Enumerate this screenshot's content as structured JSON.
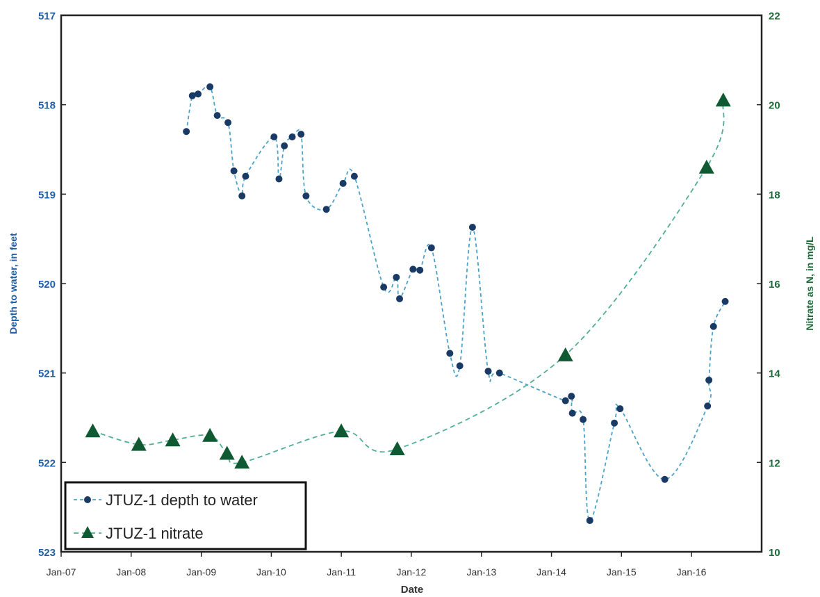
{
  "chart_data": {
    "type": "line",
    "xlabel": "Date",
    "ylabel_left": "Depth to water, in feet",
    "ylabel_right": "Nitrate as N, in mg/L",
    "x_ticks": [
      "Jan-07",
      "Jan-08",
      "Jan-09",
      "Jan-10",
      "Jan-11",
      "Jan-12",
      "Jan-13",
      "Jan-14",
      "Jan-15",
      "Jan-16"
    ],
    "x_tick_dates": [
      "2007-01-01",
      "2008-01-01",
      "2009-01-01",
      "2010-01-01",
      "2011-01-01",
      "2012-01-01",
      "2013-01-01",
      "2014-01-01",
      "2015-01-01",
      "2016-01-01"
    ],
    "xlim": [
      "2007-01-01",
      "2017-01-01"
    ],
    "ylim_left": [
      523,
      517
    ],
    "y_ticks_left": [
      517,
      518,
      519,
      520,
      521,
      522,
      523
    ],
    "ylim_right": [
      10,
      22
    ],
    "y_ticks_right": [
      10,
      12,
      14,
      16,
      18,
      20,
      22
    ],
    "legend_position": "bottom-left",
    "grid": false,
    "series": [
      {
        "name": "JTUZ-1 depth to water",
        "axis": "left",
        "marker": "circle",
        "color": "#1a3a66",
        "line_color": "#4ba3c9",
        "x": [
          "2008-10-15",
          "2008-11-15",
          "2008-12-15",
          "2009-02-15",
          "2009-03-25",
          "2009-05-20",
          "2009-06-20",
          "2009-08-01",
          "2009-08-20",
          "2010-01-15",
          "2010-02-10",
          "2010-03-10",
          "2010-04-20",
          "2010-06-05",
          "2010-07-01",
          "2010-10-15",
          "2011-01-10",
          "2011-03-10",
          "2011-08-10",
          "2011-10-15",
          "2011-11-01",
          "2012-01-10",
          "2012-02-15",
          "2012-04-15",
          "2012-07-20",
          "2012-09-10",
          "2012-11-15",
          "2013-02-05",
          "2013-04-05",
          "2014-03-15",
          "2014-04-15",
          "2014-04-20",
          "2014-06-15",
          "2014-07-20",
          "2014-11-25",
          "2014-12-25",
          "2015-08-15",
          "2016-03-25",
          "2016-04-01",
          "2016-04-25",
          "2016-06-25"
        ],
        "y": [
          518.3,
          517.9,
          517.88,
          517.8,
          518.12,
          518.2,
          518.74,
          519.02,
          518.8,
          518.36,
          518.83,
          518.46,
          518.36,
          518.33,
          519.02,
          519.17,
          518.88,
          518.8,
          520.04,
          519.93,
          520.17,
          519.84,
          519.85,
          519.6,
          520.78,
          520.92,
          519.37,
          520.98,
          521.0,
          521.31,
          521.26,
          521.45,
          521.52,
          522.65,
          521.56,
          521.4,
          522.19,
          521.37,
          521.08,
          520.48,
          520.2
        ]
      },
      {
        "name": "JTUZ-1 nitrate",
        "axis": "right",
        "marker": "triangle",
        "color": "#0f5a32",
        "line_color": "#4fae95",
        "x": [
          "2007-06-15",
          "2008-02-10",
          "2008-08-05",
          "2009-02-15",
          "2009-05-15",
          "2009-08-01",
          "2011-01-01",
          "2011-10-20",
          "2014-03-15",
          "2016-03-20",
          "2016-06-15"
        ],
        "y": [
          12.7,
          12.4,
          12.5,
          12.6,
          12.2,
          12.0,
          12.7,
          12.3,
          14.4,
          18.6,
          20.1
        ]
      }
    ]
  }
}
